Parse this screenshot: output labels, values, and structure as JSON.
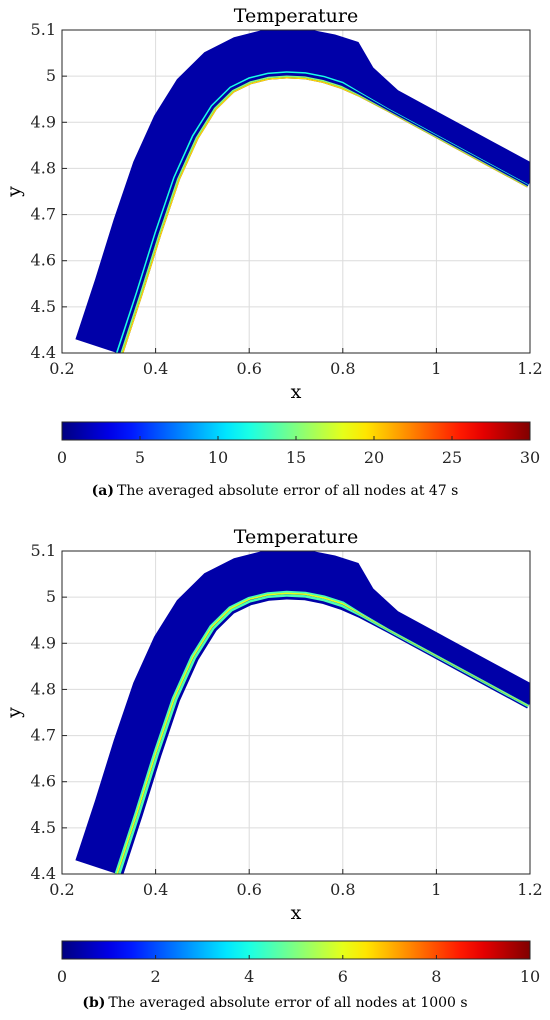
{
  "chart_data": [
    {
      "type": "heatmap",
      "title": "Temperature",
      "xlabel": "x",
      "ylabel": "y",
      "xlim": [
        0.2,
        1.2
      ],
      "ylim": [
        4.4,
        5.1
      ],
      "xticks": [
        0.2,
        0.4,
        0.6,
        0.8,
        1,
        1.2
      ],
      "yticks": [
        4.4,
        4.5,
        4.6,
        4.7,
        4.8,
        4.9,
        5,
        5.1
      ],
      "grid": true,
      "colorbar": {
        "min": 0,
        "max": 30,
        "ticks": [
          0,
          5,
          10,
          15,
          20,
          25,
          30
        ],
        "colormap": "jet",
        "placement": "bottom"
      },
      "caption_label": "(a)",
      "caption_text": "The averaged absolute error of all nodes at 47 s",
      "hot_bands": [
        {
          "offset": 0.985,
          "width": 0.03,
          "value": 20
        },
        {
          "offset": 0.955,
          "width": 0.03,
          "value": 15
        },
        {
          "offset": 0.87,
          "width": 0.03,
          "value": 12
        }
      ]
    },
    {
      "type": "heatmap",
      "title": "Temperature",
      "xlabel": "x",
      "ylabel": "y",
      "xlim": [
        0.2,
        1.2
      ],
      "ylim": [
        4.4,
        5.1
      ],
      "xticks": [
        0.2,
        0.4,
        0.6,
        0.8,
        1,
        1.2
      ],
      "yticks": [
        4.4,
        4.5,
        4.6,
        4.7,
        4.8,
        4.9,
        5,
        5.1
      ],
      "grid": true,
      "colorbar": {
        "min": 0,
        "max": 10,
        "ticks": [
          0,
          2,
          4,
          6,
          8,
          10
        ],
        "colormap": "jet",
        "placement": "bottom"
      },
      "caption_label": "(b)",
      "caption_text": "The averaged absolute error of all nodes at 1000 s",
      "hot_bands": [
        {
          "offset": 0.92,
          "width": 0.05,
          "value": 4.5
        },
        {
          "offset": 0.875,
          "width": 0.035,
          "value": 6
        },
        {
          "offset": 0.845,
          "width": 0.035,
          "value": 4.5
        }
      ]
    }
  ]
}
